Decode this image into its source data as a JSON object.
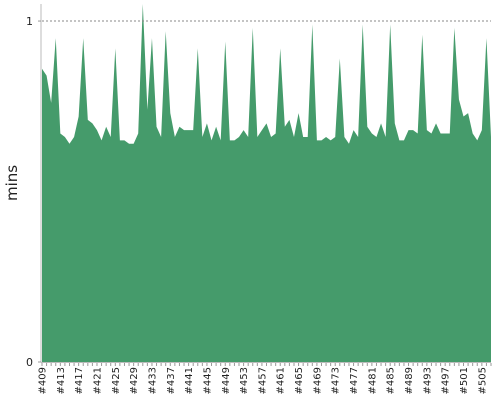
{
  "chart_data": {
    "type": "area",
    "title": "",
    "xlabel": "",
    "ylabel": "mins",
    "ylim": [
      0,
      1.05
    ],
    "yticks": [
      0,
      1
    ],
    "threshold": 1,
    "grid": false,
    "x_tick_labels": [
      "#409",
      "#413",
      "#417",
      "#421",
      "#425",
      "#429",
      "#433",
      "#437",
      "#441",
      "#445",
      "#449",
      "#453",
      "#457",
      "#461",
      "#465",
      "#469",
      "#473",
      "#477",
      "#481",
      "#485",
      "#489",
      "#493",
      "#497",
      "#501",
      "#505"
    ],
    "series": [
      {
        "color": "#459b6b",
        "x": [
          409,
          410,
          411,
          412,
          413,
          414,
          415,
          416,
          417,
          418,
          419,
          420,
          421,
          422,
          423,
          424,
          425,
          426,
          427,
          428,
          429,
          430,
          431,
          432,
          433,
          434,
          435,
          436,
          437,
          438,
          439,
          440,
          441,
          442,
          443,
          444,
          445,
          446,
          447,
          448,
          449,
          450,
          451,
          452,
          453,
          454,
          455,
          456,
          457,
          458,
          459,
          460,
          461,
          462,
          463,
          464,
          465,
          466,
          467,
          468,
          469,
          470,
          471,
          472,
          473,
          474,
          475,
          476,
          477,
          478,
          479,
          480,
          481,
          482,
          483,
          484,
          485,
          486,
          487,
          488,
          489,
          490,
          491,
          492,
          493,
          494,
          495,
          496,
          497,
          498,
          499,
          500,
          501,
          502,
          503,
          504,
          505,
          506,
          507
        ],
        "values": [
          0.86,
          0.84,
          0.76,
          0.95,
          0.67,
          0.66,
          0.64,
          0.66,
          0.72,
          0.95,
          0.71,
          0.7,
          0.68,
          0.65,
          0.69,
          0.66,
          0.92,
          0.65,
          0.65,
          0.64,
          0.64,
          0.67,
          1.05,
          0.74,
          0.95,
          0.69,
          0.66,
          0.97,
          0.73,
          0.66,
          0.69,
          0.68,
          0.68,
          0.68,
          0.92,
          0.66,
          0.7,
          0.65,
          0.69,
          0.65,
          0.94,
          0.65,
          0.65,
          0.66,
          0.68,
          0.66,
          0.98,
          0.66,
          0.68,
          0.7,
          0.66,
          0.67,
          0.92,
          0.69,
          0.71,
          0.66,
          0.73,
          0.66,
          0.66,
          0.99,
          0.65,
          0.65,
          0.66,
          0.65,
          0.66,
          0.89,
          0.66,
          0.64,
          0.68,
          0.66,
          0.99,
          0.69,
          0.67,
          0.66,
          0.7,
          0.66,
          0.99,
          0.7,
          0.65,
          0.65,
          0.68,
          0.68,
          0.67,
          0.96,
          0.68,
          0.67,
          0.7,
          0.67,
          0.67,
          0.67,
          0.98,
          0.77,
          0.72,
          0.73,
          0.67,
          0.65,
          0.68,
          0.95,
          0.66
        ]
      }
    ]
  }
}
